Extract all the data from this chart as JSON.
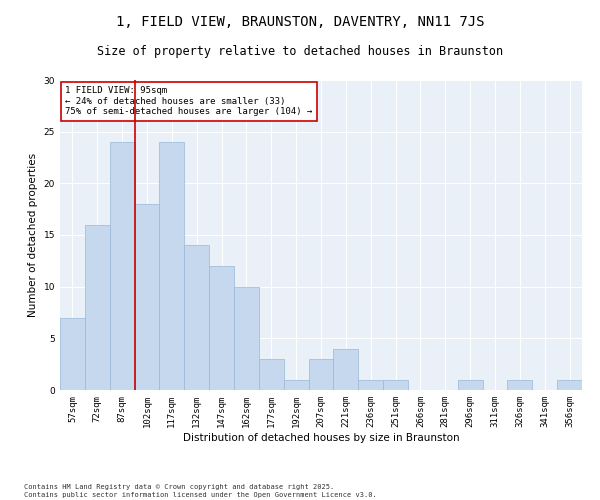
{
  "title": "1, FIELD VIEW, BRAUNSTON, DAVENTRY, NN11 7JS",
  "subtitle": "Size of property relative to detached houses in Braunston",
  "xlabel": "Distribution of detached houses by size in Braunston",
  "ylabel": "Number of detached properties",
  "categories": [
    "57sqm",
    "72sqm",
    "87sqm",
    "102sqm",
    "117sqm",
    "132sqm",
    "147sqm",
    "162sqm",
    "177sqm",
    "192sqm",
    "207sqm",
    "221sqm",
    "236sqm",
    "251sqm",
    "266sqm",
    "281sqm",
    "296sqm",
    "311sqm",
    "326sqm",
    "341sqm",
    "356sqm"
  ],
  "values": [
    7,
    16,
    24,
    18,
    24,
    14,
    12,
    10,
    3,
    1,
    3,
    4,
    1,
    1,
    0,
    0,
    1,
    0,
    1,
    0,
    1
  ],
  "bar_color": "#c5d8ee",
  "bar_edge_color": "#9ab8d8",
  "vline_x": 2.5,
  "vline_color": "#cc0000",
  "annotation_title": "1 FIELD VIEW: 95sqm",
  "annotation_line1": "← 24% of detached houses are smaller (33)",
  "annotation_line2": "75% of semi-detached houses are larger (104) →",
  "annotation_box_color": "#ffffff",
  "annotation_box_edge": "#cc0000",
  "ylim": [
    0,
    30
  ],
  "yticks": [
    0,
    5,
    10,
    15,
    20,
    25,
    30
  ],
  "background_color": "#eaf0f8",
  "footer": "Contains HM Land Registry data © Crown copyright and database right 2025.\nContains public sector information licensed under the Open Government Licence v3.0.",
  "title_fontsize": 10,
  "subtitle_fontsize": 8.5,
  "axis_label_fontsize": 7.5,
  "tick_fontsize": 6.5,
  "annotation_fontsize": 6.5,
  "footer_fontsize": 5
}
